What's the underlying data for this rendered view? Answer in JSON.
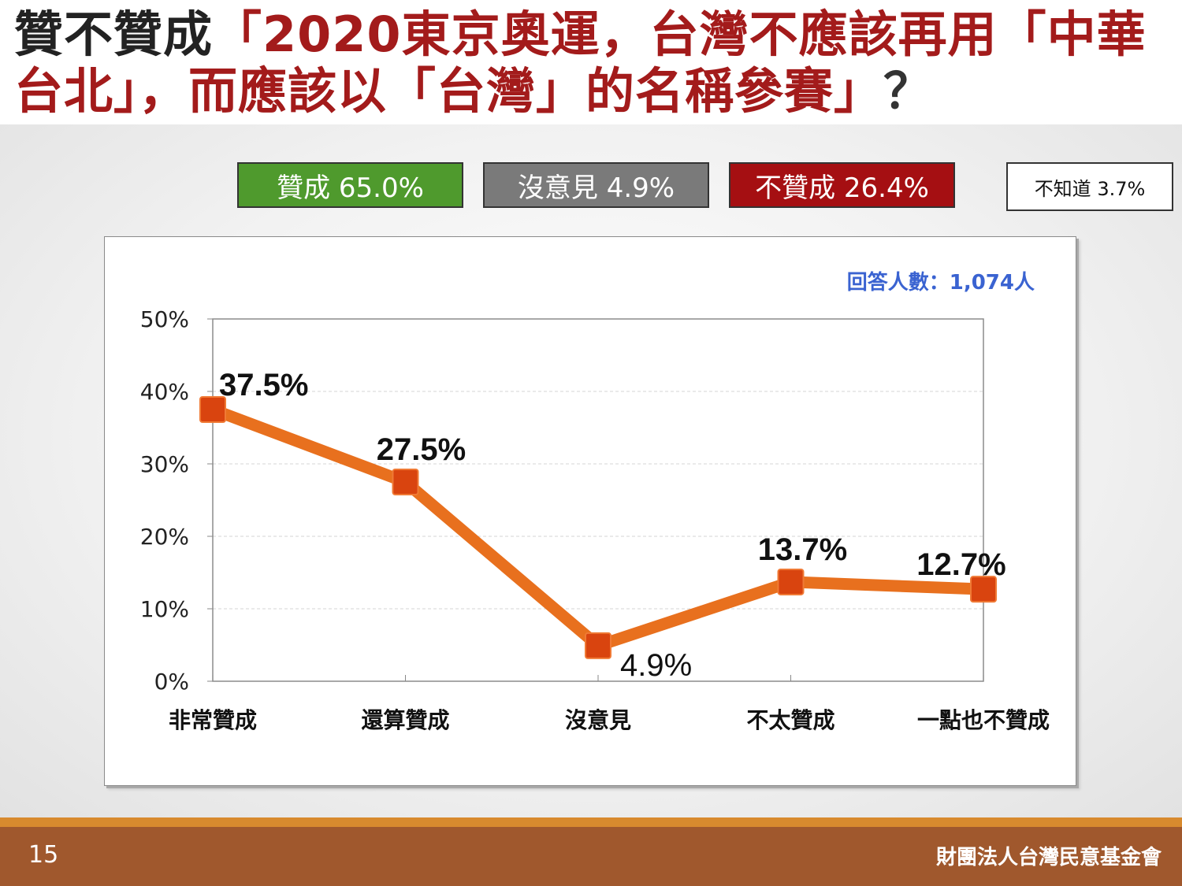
{
  "title": {
    "prefix": "贊不贊成",
    "highlight": "「2020東京奧運，台灣不應該再用「中華台北」，而應該以「台灣」的名稱參賽」",
    "suffix": "？"
  },
  "summary": {
    "agree": "贊成 65.0%",
    "no_opinion": "沒意見 4.9%",
    "disagree": "不贊成 26.4%",
    "unknown": "不知道 3.7%"
  },
  "colors": {
    "agree": "#4f9a2d",
    "no_opinion": "#7a7a7a",
    "disagree": "#a50f12",
    "line": "#e8701e",
    "marker": "#d9440f",
    "respondents": "#3a63d1"
  },
  "respondents": "回答人數：1,074人",
  "chart_data": {
    "type": "line",
    "categories": [
      "非常贊成",
      "還算贊成",
      "沒意見",
      "不太贊成",
      "一點也不贊成"
    ],
    "values": [
      37.5,
      27.5,
      4.9,
      13.7,
      12.7
    ],
    "data_labels": [
      "37.5%",
      "27.5%",
      "4.9%",
      "13.7%",
      "12.7%"
    ],
    "ylim": [
      0,
      50
    ],
    "yticks": [
      "0%",
      "10%",
      "20%",
      "30%",
      "40%",
      "50%"
    ],
    "grid": true
  },
  "footer": {
    "page": "15",
    "org": "財團法人台灣民意基金會"
  }
}
